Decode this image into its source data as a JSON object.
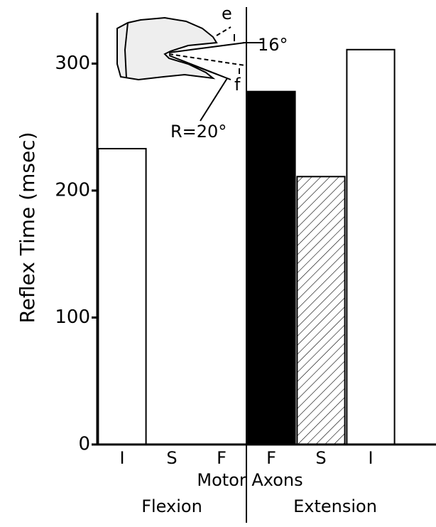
{
  "chart_data": {
    "type": "bar",
    "y_label": "Reflex Time (msec)",
    "x_label": "Motor Axons",
    "groups": [
      "Flexion",
      "Extension"
    ],
    "categories": [
      "I",
      "S",
      "F",
      "F",
      "S",
      "I"
    ],
    "values": [
      233,
      null,
      null,
      278,
      211,
      311
    ],
    "bar_fills": [
      "white",
      "hatched",
      "black",
      "black",
      "hatched",
      "white"
    ],
    "ylim": [
      0,
      340
    ],
    "yticks": [
      0,
      100,
      200,
      300
    ],
    "grid": false,
    "annotations": [
      "e",
      "16°",
      "f",
      "R=20°"
    ]
  }
}
